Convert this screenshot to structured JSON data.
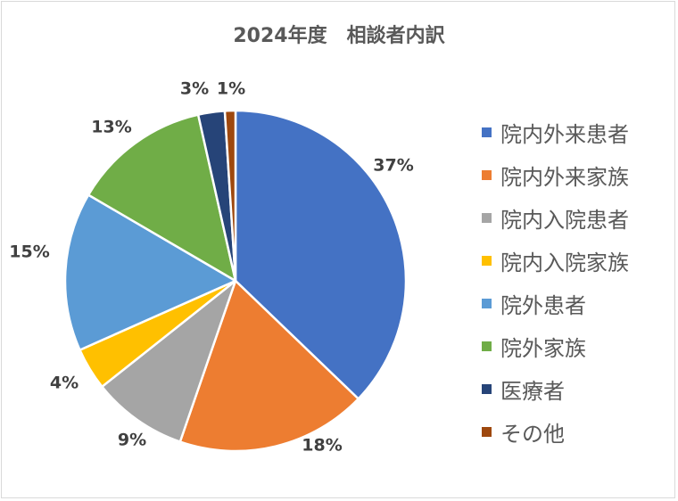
{
  "chart_data": {
    "type": "pie",
    "title": "2024年度　相談者内訳",
    "legend_position": "right",
    "start_angle_deg": 0,
    "direction": "clockwise",
    "slices": [
      {
        "label": "院内外来患者",
        "value": 37,
        "display": "37%",
        "color": "#4472c4"
      },
      {
        "label": "院内外来家族",
        "value": 18,
        "display": "18%",
        "color": "#ed7d31"
      },
      {
        "label": "院内入院患者",
        "value": 9,
        "display": "9%",
        "color": "#a5a5a5"
      },
      {
        "label": "院内入院家族",
        "value": 4,
        "display": "4%",
        "color": "#ffc000"
      },
      {
        "label": "院外患者",
        "value": 15,
        "display": "15%",
        "color": "#5b9bd5"
      },
      {
        "label": "院外家族",
        "value": 13,
        "display": "13%",
        "color": "#70ad47"
      },
      {
        "label": "医療者",
        "value": 2.5,
        "display": "3%",
        "color": "#264478"
      },
      {
        "label": "その他",
        "value": 1,
        "display": "1%",
        "color": "#9e480e"
      }
    ]
  }
}
